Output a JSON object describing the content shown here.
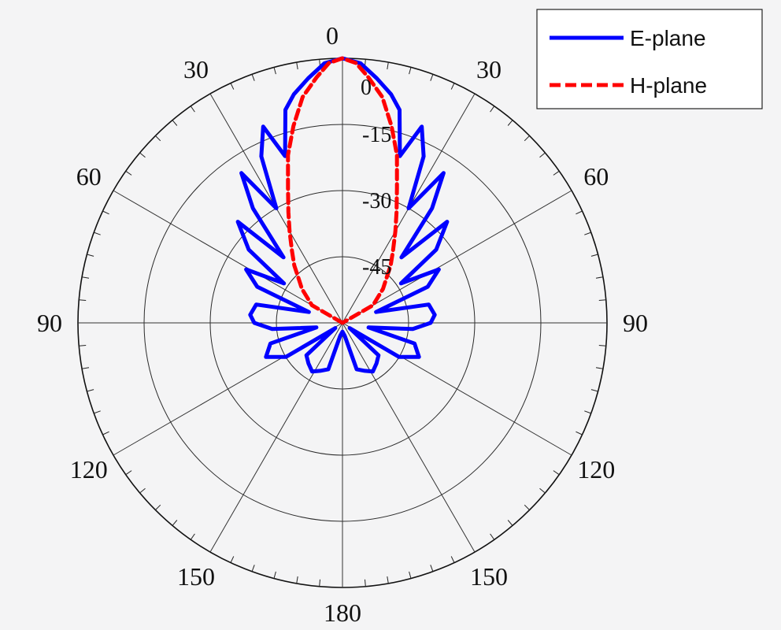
{
  "chart_data": {
    "type": "polar-line",
    "angular_unit": "degrees",
    "angle_ticks": [
      {
        "angle": 0,
        "label": "0"
      },
      {
        "angle": 30,
        "label": "30"
      },
      {
        "angle": 60,
        "label": "60"
      },
      {
        "angle": 90,
        "label": "90"
      },
      {
        "angle": 120,
        "label": "120"
      },
      {
        "angle": 150,
        "label": "150"
      },
      {
        "angle": 180,
        "label": "180"
      },
      {
        "angle": -150,
        "label": "150"
      },
      {
        "angle": -120,
        "label": "120"
      },
      {
        "angle": -90,
        "label": "90"
      },
      {
        "angle": -60,
        "label": "60"
      },
      {
        "angle": -30,
        "label": "30"
      }
    ],
    "radial_ticks": [
      {
        "value": 0,
        "label": "0"
      },
      {
        "value": -15,
        "label": "-15"
      },
      {
        "value": -30,
        "label": "-30"
      },
      {
        "value": -45,
        "label": "-45"
      }
    ],
    "rlim": [
      -60,
      0
    ],
    "grid": true,
    "legend_position": "top-right",
    "series": [
      {
        "name": "E-plane",
        "color": "#0000ff",
        "line_style": "solid",
        "points": [
          [
            -180,
            -58
          ],
          [
            -170,
            -57
          ],
          [
            -163,
            -49
          ],
          [
            -155,
            -48
          ],
          [
            -148,
            -47
          ],
          [
            -140,
            -48
          ],
          [
            -132,
            -49
          ],
          [
            -126,
            -58
          ],
          [
            -121,
            -45
          ],
          [
            -114,
            -41
          ],
          [
            -106,
            -43
          ],
          [
            -100,
            -54
          ],
          [
            -95,
            -44
          ],
          [
            -90,
            -40
          ],
          [
            -85,
            -39
          ],
          [
            -78,
            -40
          ],
          [
            -72,
            -52
          ],
          [
            -67,
            -39
          ],
          [
            -61,
            -35
          ],
          [
            -56,
            -44
          ],
          [
            -52,
            -33
          ],
          [
            -46,
            -27
          ],
          [
            -42,
            -40
          ],
          [
            -38,
            -27
          ],
          [
            -34,
            -19
          ],
          [
            -30,
            -30
          ],
          [
            -26,
            -18
          ],
          [
            -22,
            -12
          ],
          [
            -19,
            -20
          ],
          [
            -15,
            -10
          ],
          [
            -12,
            -7
          ],
          [
            -8,
            -4
          ],
          [
            -4,
            -1
          ],
          [
            0,
            0
          ],
          [
            4,
            -1
          ],
          [
            8,
            -4
          ],
          [
            12,
            -7
          ],
          [
            15,
            -10
          ],
          [
            19,
            -20
          ],
          [
            22,
            -12
          ],
          [
            26,
            -18
          ],
          [
            30,
            -30
          ],
          [
            34,
            -19
          ],
          [
            38,
            -27
          ],
          [
            42,
            -40
          ],
          [
            46,
            -27
          ],
          [
            52,
            -33
          ],
          [
            56,
            -44
          ],
          [
            61,
            -35
          ],
          [
            67,
            -39
          ],
          [
            72,
            -52
          ],
          [
            78,
            -40
          ],
          [
            85,
            -39
          ],
          [
            90,
            -40
          ],
          [
            95,
            -44
          ],
          [
            100,
            -54
          ],
          [
            106,
            -43
          ],
          [
            114,
            -41
          ],
          [
            121,
            -45
          ],
          [
            126,
            -58
          ],
          [
            132,
            -49
          ],
          [
            140,
            -48
          ],
          [
            148,
            -47
          ],
          [
            155,
            -48
          ],
          [
            163,
            -49
          ],
          [
            170,
            -57
          ],
          [
            180,
            -58
          ]
        ]
      },
      {
        "name": "H-plane",
        "color": "#ff0000",
        "line_style": "dashed",
        "points": [
          [
            -90,
            -60
          ],
          [
            -60,
            -52
          ],
          [
            -50,
            -48
          ],
          [
            -45,
            -46
          ],
          [
            -40,
            -43
          ],
          [
            -35,
            -40
          ],
          [
            -30,
            -36
          ],
          [
            -26,
            -32
          ],
          [
            -22,
            -27
          ],
          [
            -18,
            -20
          ],
          [
            -14,
            -14
          ],
          [
            -10,
            -8
          ],
          [
            -6,
            -4
          ],
          [
            -3,
            -1
          ],
          [
            0,
            0
          ],
          [
            3,
            -1
          ],
          [
            6,
            -4
          ],
          [
            10,
            -8
          ],
          [
            14,
            -14
          ],
          [
            18,
            -20
          ],
          [
            22,
            -27
          ],
          [
            26,
            -32
          ],
          [
            30,
            -36
          ],
          [
            35,
            -40
          ],
          [
            40,
            -43
          ],
          [
            45,
            -46
          ],
          [
            50,
            -48
          ],
          [
            60,
            -52
          ],
          [
            90,
            -60
          ]
        ]
      }
    ]
  }
}
